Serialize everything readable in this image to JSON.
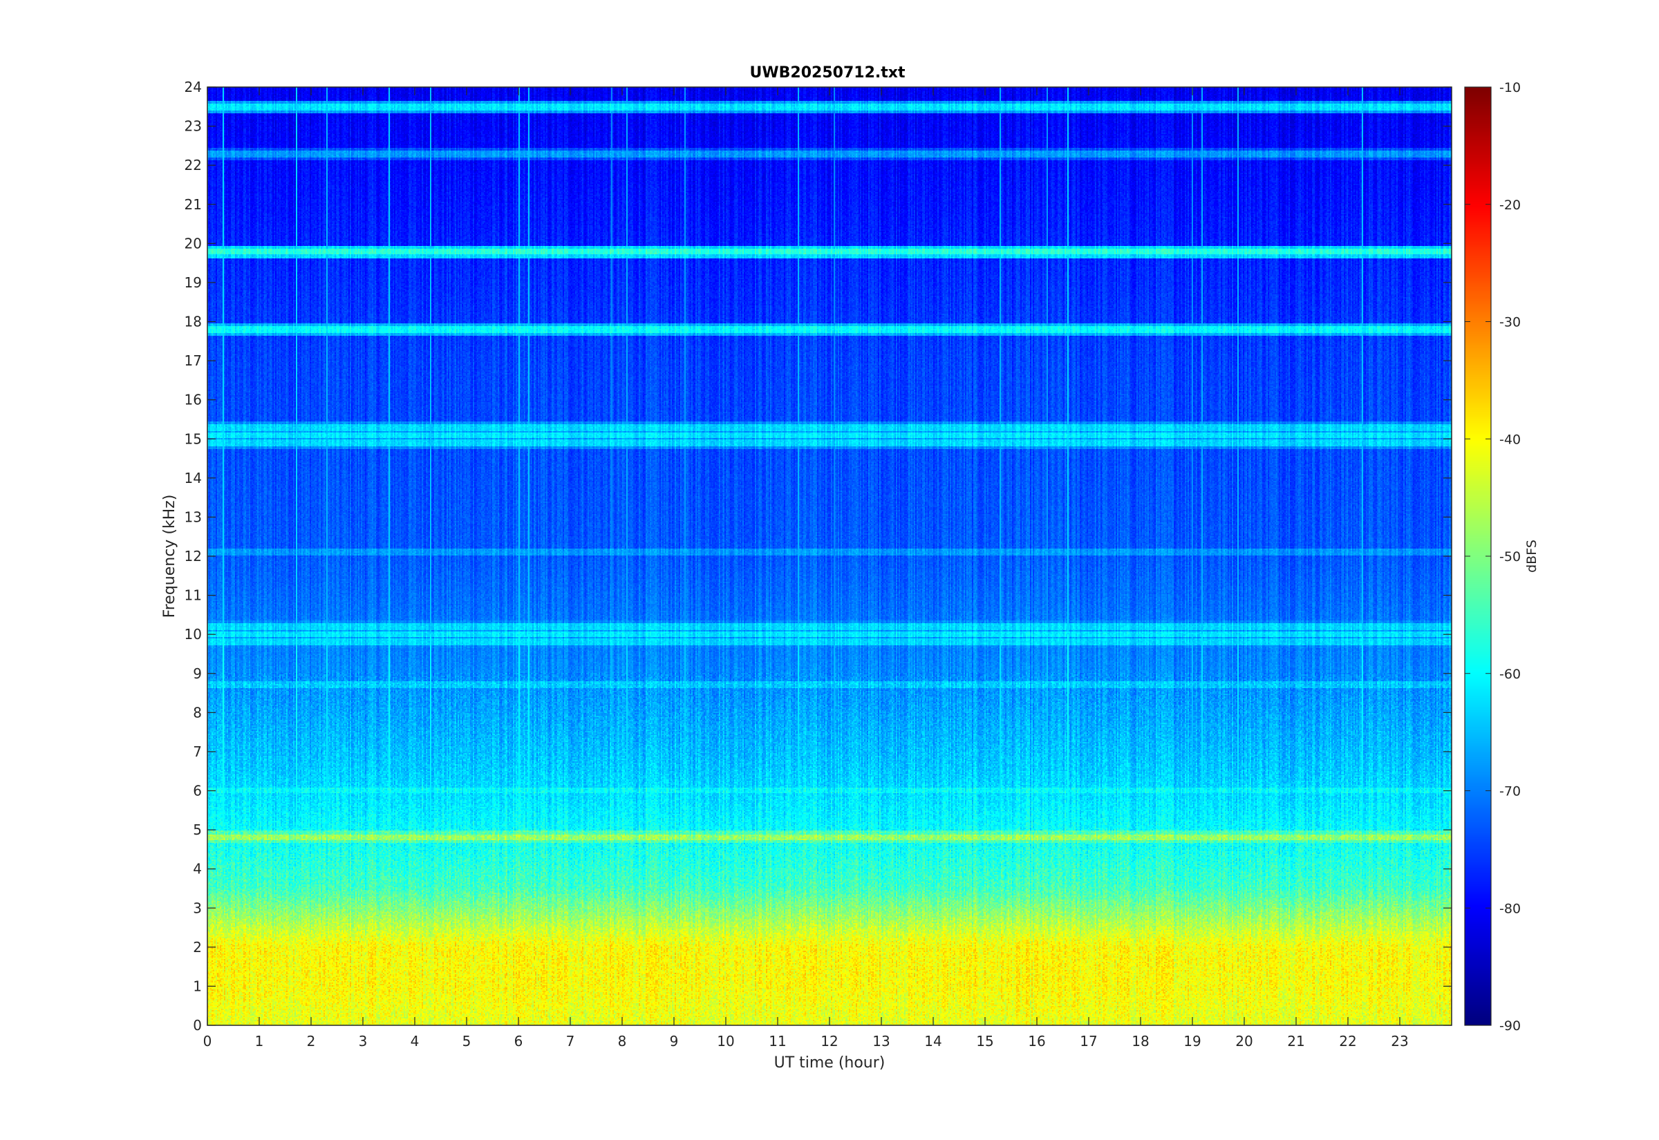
{
  "chart_data": {
    "type": "heatmap",
    "title": "UWB20250712.txt",
    "xlabel": "UT time (hour)",
    "ylabel": "Frequency (kHz)",
    "xlim": [
      0,
      24
    ],
    "ylim": [
      0,
      24
    ],
    "x_ticks": [
      0,
      1,
      2,
      3,
      4,
      5,
      6,
      7,
      8,
      9,
      10,
      11,
      12,
      13,
      14,
      15,
      16,
      17,
      18,
      19,
      20,
      21,
      22,
      23
    ],
    "y_ticks": [
      0,
      1,
      2,
      3,
      4,
      5,
      6,
      7,
      8,
      9,
      10,
      11,
      12,
      13,
      14,
      15,
      16,
      17,
      18,
      19,
      20,
      21,
      22,
      23,
      24
    ],
    "colorbar": {
      "label": "dBFS",
      "clim": [
        -90,
        -10
      ],
      "ticks": [
        -90,
        -80,
        -70,
        -60,
        -50,
        -40,
        -30,
        -20,
        -10
      ],
      "colormap": "jet"
    },
    "levels_dbfs": {
      "band_0_1_khz": -42,
      "band_1_2_khz": -40,
      "band_2_3_khz": -46,
      "band_3_5_khz": -55,
      "band_5_9_khz": -64,
      "band_9_17_khz": -73,
      "band_17_24_khz": -78
    },
    "tonal_lines_khz": [
      {
        "freq": 23.5,
        "level": -62
      },
      {
        "freq": 22.3,
        "level": -68
      },
      {
        "freq": 19.8,
        "level": -57
      },
      {
        "freq": 17.8,
        "level": -60
      },
      {
        "freq": 15.3,
        "level": -63
      },
      {
        "freq": 15.1,
        "level": -62
      },
      {
        "freq": 14.9,
        "level": -63
      },
      {
        "freq": 12.1,
        "level": -68
      },
      {
        "freq": 10.2,
        "level": -63
      },
      {
        "freq": 10.0,
        "level": -62
      },
      {
        "freq": 9.8,
        "level": -63
      },
      {
        "freq": 8.7,
        "level": -64
      },
      {
        "freq": 6.0,
        "level": -60
      },
      {
        "freq": 4.8,
        "level": -48
      }
    ],
    "vertical_events_hour": [
      0.3,
      1.7,
      2.3,
      3.5,
      4.3,
      6.0,
      6.2,
      7.8,
      8.1,
      9.2,
      11.4,
      12.1,
      15.3,
      16.2,
      16.6,
      19.0,
      19.2,
      19.9,
      22.3
    ]
  }
}
